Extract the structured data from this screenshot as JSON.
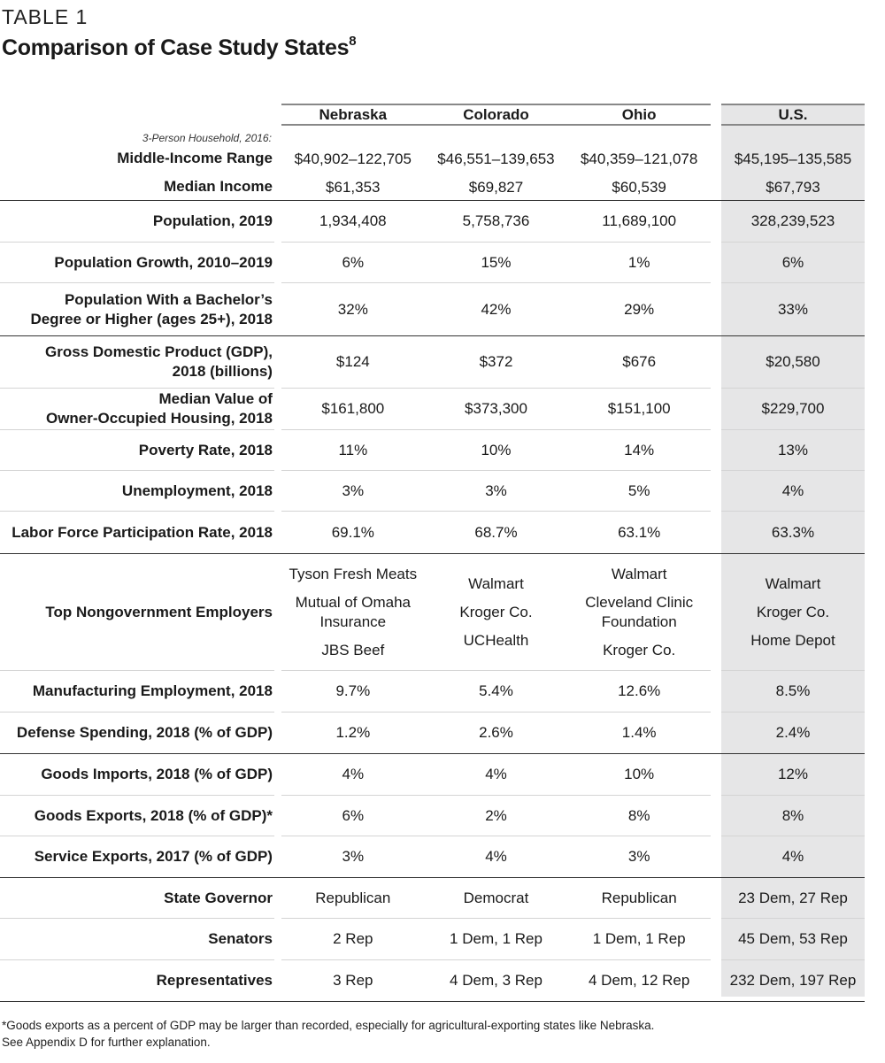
{
  "header": {
    "kicker": "TABLE 1",
    "title": "Comparison of Case Study States",
    "title_sup": "8"
  },
  "columns": [
    "Nebraska",
    "Colorado",
    "Ohio",
    "U.S."
  ],
  "income_block": {
    "note": "3-Person Household, 2016:",
    "rows": [
      {
        "label": "Middle-Income Range",
        "values": [
          "$40,902–122,705",
          "$46,551–139,653",
          "$40,359–121,078",
          "$45,195–135,585"
        ]
      },
      {
        "label": "Median Income",
        "values": [
          "$61,353",
          "$69,827",
          "$60,539",
          "$67,793"
        ]
      }
    ]
  },
  "rows": [
    {
      "label": [
        "Population, 2019"
      ],
      "values": [
        "1,934,408",
        "5,758,736",
        "11,689,100",
        "328,239,523"
      ]
    },
    {
      "label": [
        "Population Growth, 2010–2019"
      ],
      "values": [
        "6%",
        "15%",
        "1%",
        "6%"
      ]
    },
    {
      "label": [
        "Population With a Bachelor’s",
        "Degree or Higher (ages 25+), 2018"
      ],
      "values": [
        "32%",
        "42%",
        "29%",
        "33%"
      ]
    },
    {
      "label": [
        "Gross Domestic Product (GDP),",
        "2018 (billions)"
      ],
      "values": [
        "$124",
        "$372",
        "$676",
        "$20,580"
      ]
    },
    {
      "label": [
        "Median Value of",
        "Owner-Occupied Housing, 2018"
      ],
      "values": [
        "$161,800",
        "$373,300",
        "$151,100",
        "$229,700"
      ]
    },
    {
      "label": [
        "Poverty Rate, 2018"
      ],
      "values": [
        "11%",
        "10%",
        "14%",
        "13%"
      ]
    },
    {
      "label": [
        "Unemployment, 2018"
      ],
      "values": [
        "3%",
        "3%",
        "5%",
        "4%"
      ]
    },
    {
      "label": [
        "Labor Force Participation Rate, 2018"
      ],
      "values": [
        "69.1%",
        "68.7%",
        "63.1%",
        "63.3%"
      ]
    },
    {
      "label": [
        "Top Nongovernment Employers"
      ],
      "values": [
        [
          "Tyson Fresh Meats",
          "Mutual of Omaha Insurance",
          "JBS Beef"
        ],
        [
          "Walmart",
          "Kroger Co.",
          "UCHealth"
        ],
        [
          "Walmart",
          "Cleveland Clinic Foundation",
          "Kroger Co."
        ],
        [
          "Walmart",
          "Kroger Co.",
          "Home Depot"
        ]
      ]
    },
    {
      "label": [
        "Manufacturing Employment, 2018"
      ],
      "values": [
        "9.7%",
        "5.4%",
        "12.6%",
        "8.5%"
      ]
    },
    {
      "label": [
        "Defense Spending, 2018 (% of GDP)"
      ],
      "values": [
        "1.2%",
        "2.6%",
        "1.4%",
        "2.4%"
      ]
    },
    {
      "label": [
        "Goods Imports, 2018 (% of GDP)"
      ],
      "values": [
        "4%",
        "4%",
        "10%",
        "12%"
      ]
    },
    {
      "label": [
        "Goods Exports, 2018 (% of GDP)*"
      ],
      "values": [
        "6%",
        "2%",
        "8%",
        "8%"
      ]
    },
    {
      "label": [
        "Service Exports, 2017 (% of GDP)"
      ],
      "values": [
        "3%",
        "4%",
        "3%",
        "4%"
      ]
    },
    {
      "label": [
        "State Governor"
      ],
      "values": [
        "Republican",
        "Democrat",
        "Republican",
        "23 Dem, 27 Rep"
      ]
    },
    {
      "label": [
        "Senators"
      ],
      "values": [
        "2 Rep",
        "1 Dem, 1 Rep",
        "1 Dem, 1 Rep",
        "45 Dem, 53 Rep"
      ]
    },
    {
      "label": [
        "Representatives"
      ],
      "values": [
        "3 Rep",
        "4 Dem, 3 Rep",
        "4 Dem, 12 Rep",
        "232 Dem, 197 Rep"
      ]
    }
  ],
  "footnote": [
    "*Goods exports as a percent of GDP may be larger than recorded, especially for agricultural-exporting states like Nebraska.",
    "See Appendix D for further explanation."
  ],
  "colors": {
    "us_column_bg": "#e6e6e7",
    "rule": "#333333",
    "thin_rule": "#d4d4d4"
  }
}
